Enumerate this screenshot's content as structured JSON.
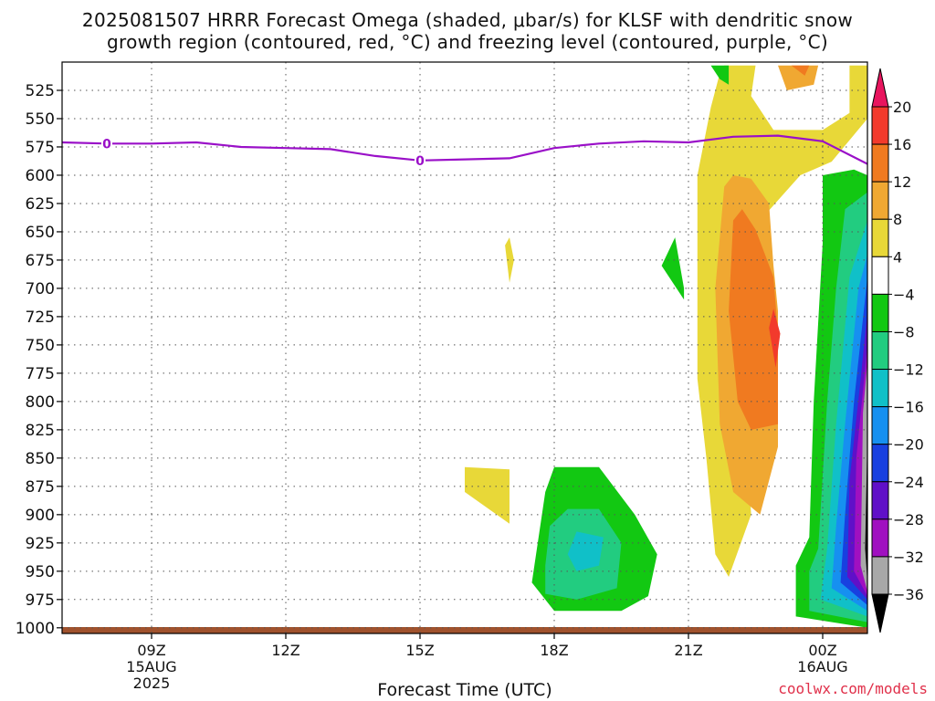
{
  "title_line1": "2025081507 HRRR Forecast Omega (shaded, μbar/s) for KLSF with dendritic snow",
  "title_line2": "growth region (contoured, red, °C) and freezing level (contoured, purple, °C)",
  "credit": "coolwx.com/models",
  "chart_data": {
    "type": "heatmap",
    "xlabel": "Forecast Time (UTC)",
    "ylabel": "",
    "x_range_hours": [
      7,
      25
    ],
    "y_axis": "pressure (hPa)",
    "y_range": [
      500,
      1005
    ],
    "y_ticks": [
      525,
      550,
      575,
      600,
      625,
      650,
      675,
      700,
      725,
      750,
      775,
      800,
      825,
      850,
      875,
      900,
      925,
      950,
      975,
      1000
    ],
    "x_ticks": [
      {
        "hour": 9,
        "label": "09Z",
        "sub1": "15AUG",
        "sub2": "2025"
      },
      {
        "hour": 12,
        "label": "12Z",
        "sub1": "",
        "sub2": ""
      },
      {
        "hour": 15,
        "label": "15Z",
        "sub1": "",
        "sub2": ""
      },
      {
        "hour": 18,
        "label": "18Z",
        "sub1": "",
        "sub2": ""
      },
      {
        "hour": 21,
        "label": "21Z",
        "sub1": "",
        "sub2": ""
      },
      {
        "hour": 24,
        "label": "00Z",
        "sub1": "16AUG",
        "sub2": ""
      }
    ],
    "grid": true,
    "colorbar": {
      "labels": [
        "20",
        "16",
        "12",
        "8",
        "4",
        "−4",
        "−8",
        "−12",
        "−16",
        "−20",
        "−24",
        "−28",
        "−32",
        "−36"
      ],
      "colors": [
        "#e8155e",
        "#f23a2c",
        "#f07a20",
        "#f0a832",
        "#e8d838",
        "#ffffff",
        "#12c812",
        "#22cc80",
        "#10c0c8",
        "#1690f0",
        "#1840e0",
        "#6010c8",
        "#a010c0",
        "#a8a8a8",
        "#000000"
      ]
    },
    "freezing_level": {
      "color": "#9a10c8",
      "label": "0",
      "points": [
        [
          7,
          571
        ],
        [
          8,
          572
        ],
        [
          9,
          572
        ],
        [
          10,
          571
        ],
        [
          11,
          575
        ],
        [
          12,
          576
        ],
        [
          13,
          577
        ],
        [
          14,
          583
        ],
        [
          15,
          587
        ],
        [
          16,
          586
        ],
        [
          17,
          585
        ],
        [
          18,
          576
        ],
        [
          19,
          572
        ],
        [
          20,
          570
        ],
        [
          21,
          571
        ],
        [
          22,
          566
        ],
        [
          23,
          565
        ],
        [
          24,
          570
        ],
        [
          25,
          590
        ]
      ]
    },
    "terrain_color": "#a0522d",
    "omega_regions": [
      {
        "value": "4 to 8",
        "color": "#e8d838",
        "points": [
          [
            21.2,
            600
          ],
          [
            21.5,
            540
          ],
          [
            21.7,
            510
          ],
          [
            21.8,
            503
          ],
          [
            22.5,
            503
          ],
          [
            22.4,
            530
          ],
          [
            22.9,
            560
          ],
          [
            24.0,
            560
          ],
          [
            24.6,
            545
          ],
          [
            24.6,
            503
          ],
          [
            25,
            503
          ],
          [
            25,
            550
          ],
          [
            24.2,
            588
          ],
          [
            23.5,
            600
          ],
          [
            22.6,
            640
          ],
          [
            22.2,
            760
          ],
          [
            22.3,
            830
          ],
          [
            22.4,
            900
          ],
          [
            21.9,
            955
          ],
          [
            21.6,
            935
          ],
          [
            21.4,
            850
          ],
          [
            21.2,
            780
          ]
        ]
      },
      {
        "value": "8 to 12",
        "color": "#f0a832",
        "points": [
          [
            21.8,
            610
          ],
          [
            22.0,
            600
          ],
          [
            22.4,
            603
          ],
          [
            22.8,
            625
          ],
          [
            22.9,
            680
          ],
          [
            23.0,
            720
          ],
          [
            23.0,
            840
          ],
          [
            22.6,
            900
          ],
          [
            22.0,
            880
          ],
          [
            21.7,
            820
          ],
          [
            21.6,
            700
          ]
        ]
      },
      {
        "value": "12 to 16",
        "color": "#f07a20",
        "points": [
          [
            22.0,
            640
          ],
          [
            22.2,
            630
          ],
          [
            22.5,
            648
          ],
          [
            22.9,
            690
          ],
          [
            23.0,
            740
          ],
          [
            23.0,
            820
          ],
          [
            22.4,
            825
          ],
          [
            22.1,
            800
          ],
          [
            21.9,
            720
          ]
        ]
      },
      {
        "value": "16 to 20",
        "color": "#f23a2c",
        "points": [
          [
            22.8,
            735
          ],
          [
            22.9,
            718
          ],
          [
            23.05,
            740
          ],
          [
            22.95,
            770
          ]
        ]
      },
      {
        "value": "8 to 12",
        "color": "#f0a832",
        "points": [
          [
            23.0,
            503
          ],
          [
            23.9,
            503
          ],
          [
            23.8,
            520
          ],
          [
            23.2,
            525
          ]
        ]
      },
      {
        "value": "12 to 16",
        "color": "#f07a20",
        "points": [
          [
            23.3,
            503
          ],
          [
            23.7,
            503
          ],
          [
            23.6,
            512
          ]
        ]
      },
      {
        "value": "4 to 8",
        "color": "#e8d838",
        "points": [
          [
            16.0,
            858
          ],
          [
            17.0,
            860
          ],
          [
            17.0,
            908
          ],
          [
            16.0,
            880
          ]
        ]
      },
      {
        "value": "4 to 8",
        "color": "#e8d838",
        "points": [
          [
            16.9,
            662
          ],
          [
            17.0,
            655
          ],
          [
            17.1,
            675
          ],
          [
            17.0,
            695
          ]
        ]
      },
      {
        "value": "-8 to -4",
        "color": "#12c812",
        "points": [
          [
            17.5,
            960
          ],
          [
            17.8,
            880
          ],
          [
            18.0,
            858
          ],
          [
            19.0,
            858
          ],
          [
            19.8,
            900
          ],
          [
            20.3,
            935
          ],
          [
            20.1,
            972
          ],
          [
            19.5,
            985
          ],
          [
            18.0,
            985
          ]
        ]
      },
      {
        "value": "-12 to -8",
        "color": "#22cc80",
        "points": [
          [
            17.8,
            945
          ],
          [
            17.9,
            910
          ],
          [
            18.3,
            895
          ],
          [
            19.0,
            895
          ],
          [
            19.5,
            925
          ],
          [
            19.4,
            965
          ],
          [
            18.5,
            975
          ],
          [
            17.8,
            970
          ]
        ]
      },
      {
        "value": "-16 to -12",
        "color": "#10c0c8",
        "points": [
          [
            18.3,
            935
          ],
          [
            18.5,
            915
          ],
          [
            19.1,
            920
          ],
          [
            19.0,
            945
          ],
          [
            18.5,
            950
          ]
        ]
      },
      {
        "value": "-8 to -4",
        "color": "#12c812",
        "points": [
          [
            20.4,
            680
          ],
          [
            20.7,
            655
          ],
          [
            20.9,
            700
          ],
          [
            20.9,
            710
          ]
        ]
      },
      {
        "value": "-8 to -4",
        "color": "#12c812",
        "points": [
          [
            21.5,
            503
          ],
          [
            21.9,
            503
          ],
          [
            21.9,
            520
          ],
          [
            21.7,
            515
          ]
        ]
      },
      {
        "value": "-8 to -4",
        "color": "#12c812",
        "points": [
          [
            23.4,
            990
          ],
          [
            23.4,
            945
          ],
          [
            23.7,
            920
          ],
          [
            23.8,
            800
          ],
          [
            24.0,
            660
          ],
          [
            24.0,
            600
          ],
          [
            24.7,
            595
          ],
          [
            25,
            600
          ],
          [
            25,
            1000
          ]
        ]
      },
      {
        "value": "-12 to -8",
        "color": "#22cc80",
        "points": [
          [
            23.7,
            985
          ],
          [
            23.7,
            950
          ],
          [
            23.9,
            930
          ],
          [
            24.1,
            800
          ],
          [
            24.3,
            700
          ],
          [
            24.5,
            630
          ],
          [
            25,
            615
          ],
          [
            25,
            995
          ]
        ]
      },
      {
        "value": "-16 to -12",
        "color": "#10c0c8",
        "points": [
          [
            23.95,
            975
          ],
          [
            24.1,
            930
          ],
          [
            24.3,
            820
          ],
          [
            24.6,
            690
          ],
          [
            25,
            640
          ],
          [
            25,
            990
          ]
        ]
      },
      {
        "value": "-20 to -16",
        "color": "#1690f0",
        "points": [
          [
            24.2,
            965
          ],
          [
            24.3,
            910
          ],
          [
            24.5,
            820
          ],
          [
            24.8,
            700
          ],
          [
            25,
            670
          ],
          [
            25,
            985
          ]
        ]
      },
      {
        "value": "-24 to -20",
        "color": "#1840e0",
        "points": [
          [
            24.4,
            960
          ],
          [
            24.5,
            900
          ],
          [
            24.7,
            800
          ],
          [
            25,
            690
          ],
          [
            25,
            980
          ]
        ]
      },
      {
        "value": "-28 to -24",
        "color": "#6010c8",
        "points": [
          [
            24.55,
            955
          ],
          [
            24.6,
            870
          ],
          [
            24.85,
            780
          ],
          [
            25,
            720
          ],
          [
            25,
            975
          ]
        ]
      },
      {
        "value": "-32 to -28",
        "color": "#a010c0",
        "points": [
          [
            24.7,
            950
          ],
          [
            24.75,
            850
          ],
          [
            25,
            750
          ],
          [
            25,
            972
          ]
        ]
      },
      {
        "value": "-36 to -32",
        "color": "#a8a8a8",
        "points": [
          [
            24.85,
            945
          ],
          [
            24.9,
            810
          ],
          [
            25,
            765
          ],
          [
            25,
            968
          ]
        ]
      },
      {
        "value": "< -36",
        "color": "#000000",
        "points": [
          [
            25,
            830
          ],
          [
            24.95,
            930
          ],
          [
            25,
            960
          ]
        ]
      }
    ]
  }
}
